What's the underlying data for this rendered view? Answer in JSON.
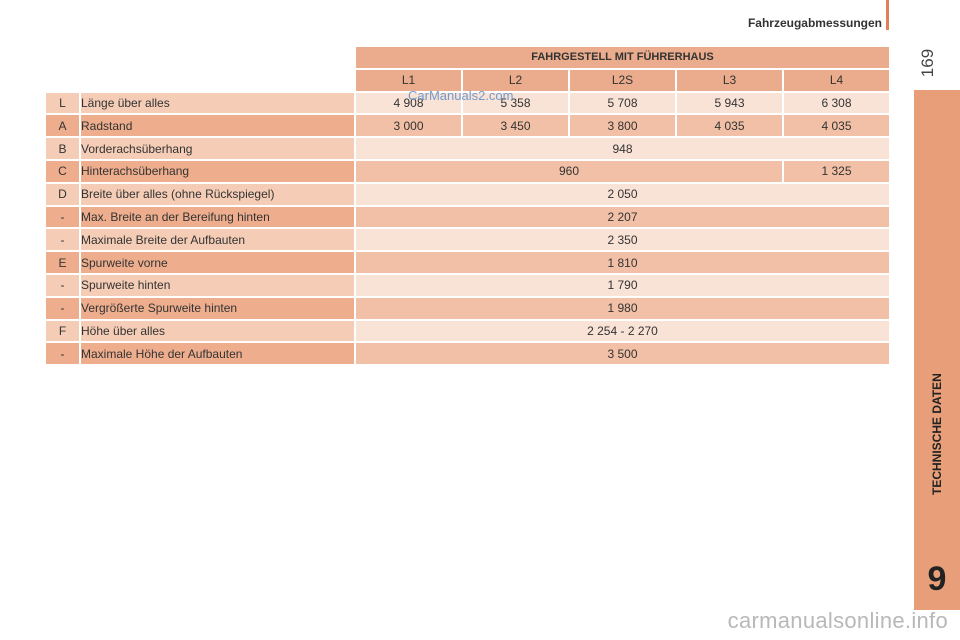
{
  "header": {
    "section_title": "Fahrzeugabmessungen",
    "page_number": "169"
  },
  "side_tab": {
    "label": "TECHNISCHE DATEN",
    "chapter": "9"
  },
  "watermark": "CarManuals2.com",
  "footer_watermark": "carmanualsonline.info",
  "table": {
    "group_header": "FAHRGESTELL MIT FÜHRERHAUS",
    "models": [
      "L1",
      "L2",
      "L2S",
      "L3",
      "L4"
    ],
    "rows": [
      {
        "code": "L",
        "label": "Länge über alles",
        "values": [
          "4 908",
          "5 358",
          "5 708",
          "5 943",
          "6 308"
        ]
      },
      {
        "code": "A",
        "label": "Radstand",
        "values": [
          "3 000",
          "3 450",
          "3 800",
          "4 035",
          "4 035"
        ]
      },
      {
        "code": "B",
        "label": "Vorderachsüberhang",
        "values": [
          "948"
        ]
      },
      {
        "code": "C",
        "label": "Hinterachsüberhang",
        "values": [
          "960",
          "1 325"
        ]
      },
      {
        "code": "D",
        "label": "Breite über alles (ohne Rückspiegel)",
        "values": [
          "2 050"
        ]
      },
      {
        "code": "-",
        "label": "Max. Breite an der Bereifung hinten",
        "values": [
          "2 207"
        ]
      },
      {
        "code": "-",
        "label": "Maximale Breite der Aufbauten",
        "values": [
          "2 350"
        ]
      },
      {
        "code": "E",
        "label": "Spurweite vorne",
        "values": [
          "1 810"
        ]
      },
      {
        "code": "-",
        "label": "Spurweite hinten",
        "values": [
          "1 790"
        ]
      },
      {
        "code": "-",
        "label": "Vergrößerte Spurweite hinten",
        "values": [
          "1 980"
        ]
      },
      {
        "code": "F",
        "label": "Höhe über alles",
        "values": [
          "2 254 - 2 270"
        ]
      },
      {
        "code": "-",
        "label": "Maximale Höhe der Aufbauten",
        "values": [
          "3 500"
        ]
      }
    ]
  },
  "colors": {
    "accent": "#e0805a",
    "side_tab": "#e89e78",
    "header_cell": "#eaac8c"
  }
}
